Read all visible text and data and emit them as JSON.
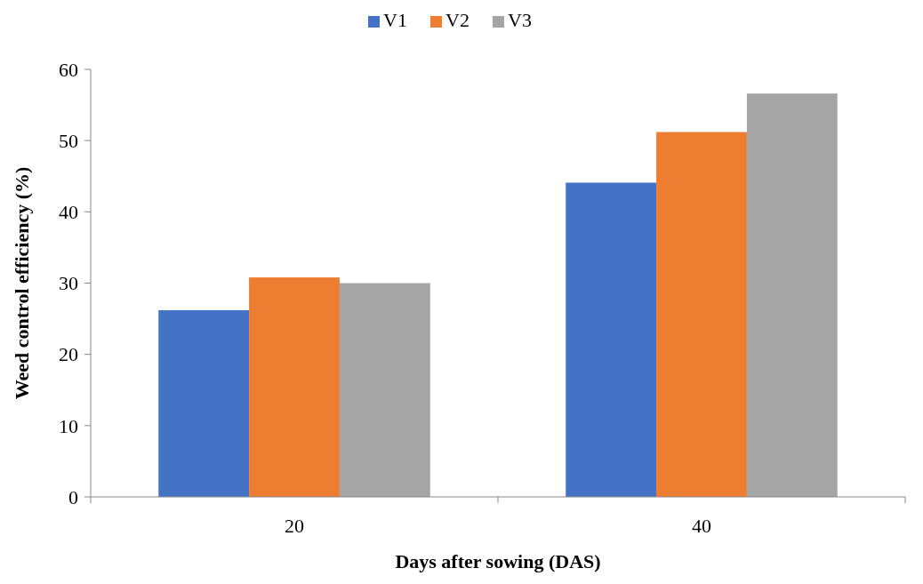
{
  "chart_data": {
    "type": "bar",
    "xlabel": "Days after sowing (DAS)",
    "ylabel": "Weed control efficiency (%)",
    "categories": [
      "20",
      "40"
    ],
    "series": [
      {
        "name": "V1",
        "color": "#4472c4",
        "values": [
          26.2,
          44.1
        ]
      },
      {
        "name": "V2",
        "color": "#ed7d31",
        "values": [
          30.8,
          51.2
        ]
      },
      {
        "name": "V3",
        "color": "#a5a5a5",
        "values": [
          30.0,
          56.6
        ]
      }
    ],
    "ylim": [
      0,
      60
    ],
    "yticks": [
      0,
      10,
      20,
      30,
      40,
      50,
      60
    ],
    "legend": "top",
    "grid": false
  }
}
